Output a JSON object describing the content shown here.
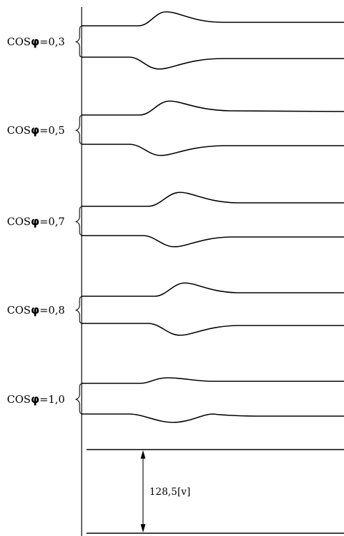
{
  "diagram": {
    "groups": [
      {
        "cos_label": "COS",
        "phi_symbol": "φ",
        "value_text": "=0,3"
      },
      {
        "cos_label": "COS",
        "phi_symbol": "φ",
        "value_text": "=0,5"
      },
      {
        "cos_label": "COS",
        "phi_symbol": "φ",
        "value_text": "=0,7"
      },
      {
        "cos_label": "COS",
        "phi_symbol": "φ",
        "value_text": "=0,8"
      },
      {
        "cos_label": "COS",
        "phi_symbol": "φ",
        "value_text": "=1,0"
      }
    ],
    "scale_label": "128,5[v]"
  }
}
